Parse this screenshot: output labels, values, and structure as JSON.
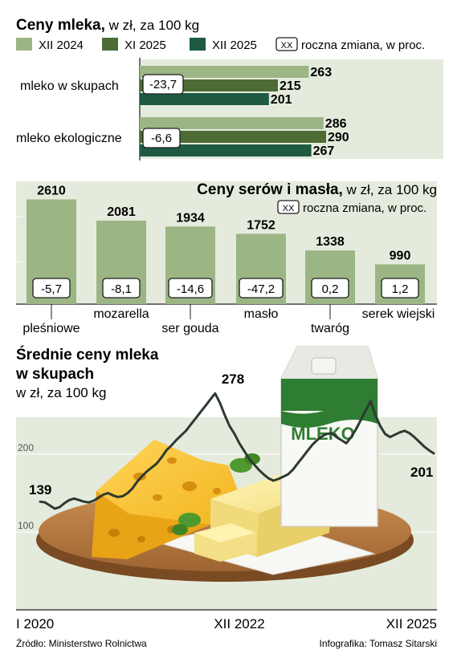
{
  "colors": {
    "light_green": "#9cb585",
    "mid_green": "#4d6b33",
    "dark_green": "#1d5a41",
    "panel_bg": "#e4ebdc",
    "line": "#2d3a30"
  },
  "legend_xx": "XX",
  "chart_data": [
    {
      "type": "bar",
      "orientation": "horizontal",
      "title": "Ceny mleka,",
      "subtitle": " w zł, za 100 kg",
      "change_note": "roczna zmiana, w proc.",
      "categories": [
        "mleko w skupach",
        "mleko ekologiczne"
      ],
      "series": [
        {
          "name": "XII 2024",
          "values": [
            263,
            286
          ]
        },
        {
          "name": "XI 2025",
          "values": [
            215,
            290
          ]
        },
        {
          "name": "XII 2025",
          "values": [
            201,
            267
          ]
        }
      ],
      "value_labels": [
        "263",
        "215",
        "201",
        "286",
        "290",
        "267"
      ],
      "changes": [
        "-23,7",
        "-6,6"
      ]
    },
    {
      "type": "bar",
      "title": "Ceny serów i masła,",
      "subtitle": " w zł, za 100 kg",
      "change_note": "roczna zmiana, w proc.",
      "categories": [
        "pleśniowe",
        "mozarella",
        "ser gouda",
        "masło",
        "twaróg",
        "serek wiejski"
      ],
      "values": [
        2610,
        2081,
        1934,
        1752,
        1338,
        990
      ],
      "value_labels": [
        "2610",
        "2081",
        "1934",
        "1752",
        "1338",
        "990"
      ],
      "changes": [
        "-5,7",
        "-8,1",
        "-14,6",
        "-47,2",
        "0,2",
        "1,2"
      ]
    },
    {
      "type": "line",
      "title_line1": "Średnie ceny mleka",
      "title_line2": "w skupach",
      "subtitle": "w zł, za 100 kg",
      "x_start_label": "I 2020",
      "x_mid_label": "XII 2022",
      "x_end_label": "XII 2025",
      "y_ticks": [
        "200",
        "100"
      ],
      "ylim": [
        0,
        300
      ],
      "annotations": [
        "139",
        "278",
        "201"
      ],
      "series": [
        {
          "values": [
            139,
            138,
            134,
            130,
            132,
            137,
            141,
            143,
            141,
            139,
            138,
            140,
            144,
            148,
            150,
            147,
            145,
            146,
            150,
            156,
            165,
            172,
            178,
            183,
            188,
            196,
            205,
            211,
            218,
            224,
            230,
            238,
            246,
            254,
            262,
            270,
            278,
            266,
            250,
            236,
            226,
            214,
            204,
            194,
            187,
            180,
            174,
            169,
            166,
            168,
            171,
            174,
            180,
            188,
            196,
            204,
            212,
            218,
            223,
            226,
            227,
            222,
            218,
            214,
            222,
            232,
            244,
            256,
            268,
            250,
            236,
            226,
            222,
            225,
            228,
            230,
            227,
            222,
            216,
            210,
            205,
            201
          ]
        }
      ]
    }
  ],
  "illustration": {
    "carton_label": "MLEKO"
  },
  "footer": {
    "source": "Źródło: Ministerstwo Rolnictwa",
    "credit": "Infografika: Tomasz Sitarski"
  }
}
